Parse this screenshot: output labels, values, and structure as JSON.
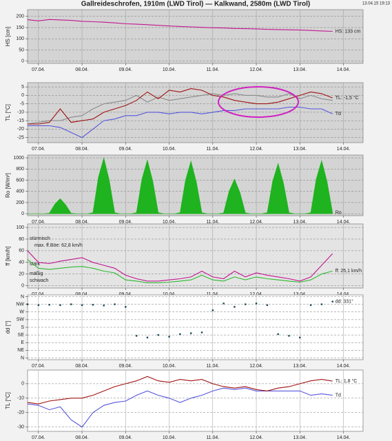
{
  "title": "Gallreideschrofen, 1910m (LWD Tirol) — Kalkwand, 2580m (LWD Tirol)",
  "timestamp": "13.04.15 19:13",
  "chart_data": [
    {
      "type": "line",
      "ylabel": "HS [cm]",
      "ylabel_color": "#c0158f",
      "background": "#d4d4d4",
      "grid": true,
      "xlim": [
        -0.25,
        7.45
      ],
      "xticks": [
        {
          "value": 0,
          "label": "07.04."
        },
        {
          "value": 1,
          "label": "08.04."
        },
        {
          "value": 2,
          "label": "09.04."
        },
        {
          "value": 3,
          "label": "10.04."
        },
        {
          "value": 4,
          "label": "11.04."
        },
        {
          "value": 5,
          "label": "12.04."
        },
        {
          "value": 6,
          "label": "13.04."
        },
        {
          "value": 7,
          "label": "14.04."
        }
      ],
      "ylim": [
        -10,
        230
      ],
      "yticks": [
        0,
        50,
        100,
        150,
        200
      ],
      "x": [
        -0.25,
        0,
        0.25,
        0.5,
        0.75,
        1,
        1.25,
        1.5,
        1.75,
        2,
        2.25,
        2.5,
        2.75,
        3,
        3.25,
        3.5,
        3.75,
        4,
        4.25,
        4.5,
        4.75,
        5,
        5.25,
        5.5,
        5.75,
        6,
        6.25,
        6.5,
        6.75
      ],
      "series": [
        {
          "name": "HS: 133 cm",
          "color": "#c0158f",
          "values": [
            185,
            180,
            186,
            184,
            182,
            178,
            176,
            174,
            171,
            167,
            165,
            163,
            160,
            157,
            155,
            153,
            151,
            149,
            148,
            146,
            145,
            144,
            142,
            141,
            140,
            139,
            137,
            135,
            133
          ]
        }
      ]
    },
    {
      "type": "line",
      "ylabel": "TL [°C]",
      "ylabel_color": "#a01010",
      "background": "#d4d4d4",
      "grid": true,
      "xlim": [
        -0.25,
        7.45
      ],
      "xticks": [
        {
          "value": 0,
          "label": "07.04."
        },
        {
          "value": 1,
          "label": "08.04."
        },
        {
          "value": 2,
          "label": "09.04."
        },
        {
          "value": 3,
          "label": "10.04."
        },
        {
          "value": 4,
          "label": "11.04."
        },
        {
          "value": 5,
          "label": "12.04."
        },
        {
          "value": 6,
          "label": "13.04."
        },
        {
          "value": 7,
          "label": "14.04."
        }
      ],
      "ylim": [
        -28,
        7.5
      ],
      "yticks": [
        5,
        0,
        -5,
        -10,
        -15,
        -20,
        -25
      ],
      "x": [
        -0.25,
        0,
        0.25,
        0.5,
        0.75,
        1,
        1.25,
        1.5,
        1.75,
        2,
        2.25,
        2.5,
        2.75,
        3,
        3.25,
        3.5,
        3.75,
        4,
        4.25,
        4.5,
        4.75,
        5,
        5.25,
        5.5,
        5.75,
        6,
        6.25,
        6.5,
        6.75
      ],
      "series": [
        {
          "color": "#8a8a8a",
          "values": [
            -17,
            -16,
            -15,
            -15,
            -13,
            -12,
            -8,
            -5,
            -4,
            -3,
            0,
            -4,
            -1,
            -3,
            -2,
            -1,
            0,
            1,
            0,
            1,
            0,
            0,
            -1,
            -1,
            1,
            -2,
            0,
            -2,
            -3
          ]
        },
        {
          "name": "Td",
          "color": "#5555dd",
          "values": [
            -18,
            -18,
            -18,
            -19,
            -22,
            -25,
            -20,
            -15,
            -14,
            -12,
            -12,
            -10,
            -10,
            -11,
            -10,
            -10,
            -11,
            -10,
            -9,
            -9,
            -8,
            -8,
            -8,
            -8,
            -7,
            -7,
            -8,
            -8,
            -11
          ]
        },
        {
          "name": "TL: -1,5 °C",
          "color": "#a01010",
          "values": [
            -17,
            -17,
            -16,
            -8,
            -16,
            -15,
            -14,
            -10,
            -8,
            -6,
            -3,
            2,
            -2,
            3,
            2,
            4,
            3,
            0,
            -1,
            -3,
            -4,
            -5,
            -5,
            -4,
            -2,
            0,
            2,
            1,
            -1.5
          ]
        }
      ]
    },
    {
      "type": "area",
      "ylabel": "Ro [W/m²]",
      "ylabel_color": "#1fb31f",
      "background": "#d4d4d4",
      "grid": true,
      "xlim": [
        -0.25,
        7.45
      ],
      "xticks": [
        {
          "value": 0,
          "label": "07.04."
        },
        {
          "value": 1,
          "label": "08.04."
        },
        {
          "value": 2,
          "label": "09.04."
        },
        {
          "value": 3,
          "label": "10.04."
        },
        {
          "value": 4,
          "label": "11.04."
        },
        {
          "value": 5,
          "label": "12.04."
        },
        {
          "value": 6,
          "label": "13.04."
        },
        {
          "value": 7,
          "label": "14.04."
        }
      ],
      "ylim": [
        -35,
        1050
      ],
      "yticks": [
        0,
        200,
        400,
        600,
        800,
        1000
      ],
      "x": [
        -0.25,
        -0.125,
        0,
        0.125,
        0.25,
        0.375,
        0.5,
        0.625,
        0.75,
        0.875,
        1,
        1.125,
        1.25,
        1.375,
        1.5,
        1.625,
        1.75,
        1.875,
        2,
        2.125,
        2.25,
        2.375,
        2.5,
        2.625,
        2.75,
        2.875,
        3,
        3.125,
        3.25,
        3.375,
        3.5,
        3.625,
        3.75,
        3.875,
        4,
        4.125,
        4.25,
        4.375,
        4.5,
        4.625,
        4.75,
        4.875,
        5,
        5.125,
        5.25,
        5.375,
        5.5,
        5.625,
        5.75,
        5.875,
        6,
        6.125,
        6.25,
        6.375,
        6.5,
        6.625,
        6.75
      ],
      "series": [
        {
          "name": "Ro",
          "color": "#1fb31f",
          "values": [
            0,
            0,
            0,
            0,
            10,
            170,
            270,
            160,
            10,
            0,
            0,
            0,
            20,
            650,
            1000,
            600,
            20,
            0,
            0,
            0,
            20,
            620,
            960,
            580,
            20,
            0,
            0,
            0,
            20,
            600,
            940,
            560,
            20,
            0,
            0,
            0,
            15,
            400,
            620,
            380,
            15,
            0,
            0,
            0,
            20,
            580,
            900,
            540,
            20,
            0,
            0,
            0,
            20,
            620,
            950,
            570,
            20
          ]
        }
      ]
    },
    {
      "type": "line",
      "ylabel": "ff [km/h]",
      "ylabel_color": "#1fb31f",
      "background": "#e4e4e4",
      "grid": true,
      "xlim": [
        -0.25,
        7.45
      ],
      "xticks": [
        {
          "value": 0,
          "label": "07.04."
        },
        {
          "value": 1,
          "label": "08.04."
        },
        {
          "value": 2,
          "label": "09.04."
        },
        {
          "value": 3,
          "label": "10.04."
        },
        {
          "value": 4,
          "label": "11.04."
        },
        {
          "value": 5,
          "label": "12.04."
        },
        {
          "value": 6,
          "label": "13.04."
        },
        {
          "value": 7,
          "label": "14.04."
        }
      ],
      "ylim": [
        -4,
        106
      ],
      "yticks": [
        0,
        20,
        40,
        60,
        80,
        100
      ],
      "annotations": [
        {
          "text": "stürmisch",
          "color": "#222222"
        },
        {
          "text": "max. ff.Böe: 62,8 km/h",
          "color": "#c0158f"
        },
        {
          "text": "stark",
          "color": "#222222"
        },
        {
          "text": "mäßig",
          "color": "#222222"
        },
        {
          "text": "schwach",
          "color": "#222222"
        }
      ],
      "x": [
        -0.25,
        0,
        0.25,
        0.5,
        0.75,
        1,
        1.25,
        1.5,
        1.75,
        2,
        2.25,
        2.5,
        2.75,
        3,
        3.25,
        3.5,
        3.75,
        4,
        4.25,
        4.5,
        4.75,
        5,
        5.25,
        5.5,
        5.75,
        6,
        6.25,
        6.5,
        6.75
      ],
      "series": [
        {
          "color": "#c0158f",
          "values": [
            60,
            40,
            38,
            42,
            45,
            48,
            40,
            35,
            30,
            18,
            12,
            8,
            8,
            10,
            12,
            15,
            25,
            15,
            12,
            25,
            15,
            22,
            18,
            15,
            12,
            8,
            15,
            35,
            55
          ]
        },
        {
          "name": "ff: 25,1 km/h",
          "color": "#2eb82e",
          "values": [
            45,
            30,
            28,
            30,
            32,
            33,
            30,
            25,
            22,
            10,
            8,
            5,
            5,
            6,
            8,
            10,
            18,
            10,
            8,
            15,
            10,
            15,
            12,
            10,
            8,
            6,
            10,
            20,
            25.1
          ]
        }
      ]
    },
    {
      "type": "scatter",
      "ylabel": "dd [°]",
      "ylabel_color": "#1a4a5a",
      "background": "#ffffff",
      "grid": true,
      "xlim": [
        -0.25,
        7.45
      ],
      "xticks": [
        {
          "value": 0,
          "label": "07.04."
        },
        {
          "value": 1,
          "label": "08.04."
        },
        {
          "value": 2,
          "label": "09.04."
        },
        {
          "value": 3,
          "label": "10.04."
        },
        {
          "value": 4,
          "label": "11.04."
        },
        {
          "value": 5,
          "label": "12.04."
        },
        {
          "value": 6,
          "label": "13.04."
        },
        {
          "value": 7,
          "label": "14.04."
        }
      ],
      "ylim": [
        -10,
        370
      ],
      "yticks": [
        {
          "value": 360,
          "label": "N"
        },
        {
          "value": 315,
          "label": "NW"
        },
        {
          "value": 270,
          "label": "W"
        },
        {
          "value": 225,
          "label": "SW"
        },
        {
          "value": 180,
          "label": "S"
        },
        {
          "value": 135,
          "label": "SE"
        },
        {
          "value": 90,
          "label": "E"
        },
        {
          "value": 45,
          "label": "NE"
        },
        {
          "value": 0,
          "label": "N"
        }
      ],
      "x": [
        -0.25,
        0,
        0.25,
        0.5,
        0.75,
        1,
        1.25,
        1.5,
        1.75,
        2,
        2.25,
        2.5,
        2.75,
        3,
        3.25,
        3.5,
        3.75,
        4,
        4.25,
        4.5,
        4.75,
        5,
        5.25,
        5.5,
        5.75,
        6,
        6.25,
        6.5,
        6.75
      ],
      "series": [
        {
          "name": "dd: 331°",
          "color": "#1a4a5a",
          "values": [
            315,
            310,
            312,
            310,
            315,
            310,
            312,
            308,
            315,
            300,
            130,
            120,
            135,
            125,
            140,
            145,
            150,
            280,
            320,
            300,
            315,
            320,
            310,
            140,
            130,
            120,
            310,
            315,
            331
          ]
        }
      ]
    },
    {
      "type": "line",
      "ylabel": "TL [°C]",
      "ylabel_color": "#a01010",
      "background": "#ffffff",
      "grid": true,
      "xlim": [
        -0.25,
        7.45
      ],
      "xticks": [
        {
          "value": 0,
          "label": "07.04."
        },
        {
          "value": 1,
          "label": "08.04."
        },
        {
          "value": 2,
          "label": "09.04."
        },
        {
          "value": 3,
          "label": "10.04."
        },
        {
          "value": 4,
          "label": "11.04."
        },
        {
          "value": 5,
          "label": "12.04."
        },
        {
          "value": 6,
          "label": "13.04."
        },
        {
          "value": 7,
          "label": "14.04."
        }
      ],
      "ylim": [
        -33,
        9.5
      ],
      "yticks": [
        0,
        -10,
        -20,
        -30
      ],
      "x": [
        -0.25,
        0,
        0.25,
        0.5,
        0.75,
        1,
        1.25,
        1.5,
        1.75,
        2,
        2.25,
        2.5,
        2.75,
        3,
        3.25,
        3.5,
        3.75,
        4,
        4.25,
        4.5,
        4.75,
        5,
        5.25,
        5.5,
        5.75,
        6,
        6.25,
        6.5,
        6.75
      ],
      "series": [
        {
          "name": "Td",
          "color": "#5555dd",
          "values": [
            -14,
            -15,
            -18,
            -16,
            -25,
            -30,
            -20,
            -15,
            -13,
            -12,
            -8,
            -5,
            -8,
            -10,
            -13,
            -10,
            -8,
            -5,
            -3,
            -4,
            -3,
            -5,
            -5,
            -5,
            -5,
            -5,
            -8,
            -7,
            -8
          ]
        },
        {
          "name": "TL: 1,8 °C",
          "color": "#a01010",
          "values": [
            -13,
            -14,
            -12,
            -11,
            -10,
            -10,
            -8,
            -5,
            -2,
            0,
            2,
            5,
            2,
            1,
            3,
            2,
            3,
            0,
            -2,
            -3,
            -2,
            -4,
            -5,
            -3,
            -2,
            0,
            2,
            3,
            1.8
          ]
        }
      ]
    }
  ]
}
